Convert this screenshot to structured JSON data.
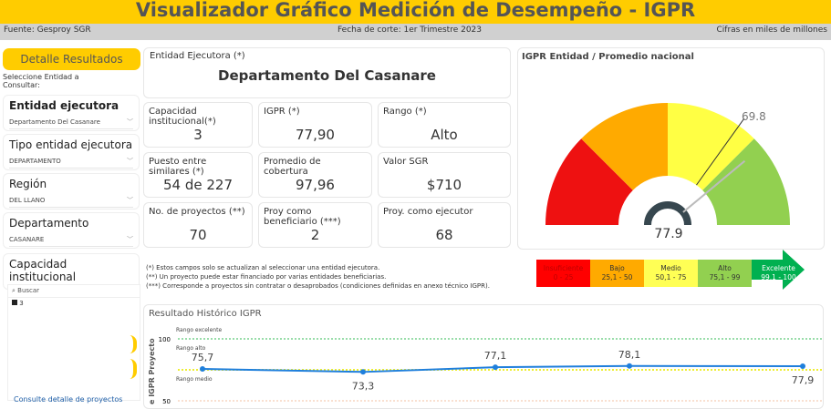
{
  "header": {
    "title": "Visualizador Gráfico Medición de Desempeño - IGPR",
    "source": "Fuente: Gesproy SGR",
    "cutoff": "Fecha de corte: 1er Trimestre 2023",
    "units": "Cifras en miles de millones"
  },
  "sidebar": {
    "details_button": "Detalle Resultados",
    "prompt": "Seleccione Entidad a Consultar:",
    "filters": [
      {
        "label": "Entidad ejecutora",
        "value": "Departamento Del Casanare"
      },
      {
        "label": "Tipo entidad ejecutora",
        "value": "DEPARTAMENTO"
      },
      {
        "label": "Región",
        "value": "DEL LLANO"
      },
      {
        "label": "Departamento",
        "value": "CASANARE"
      },
      {
        "label": "Capacidad institucional",
        "value": "3"
      }
    ],
    "dropdown": {
      "search_placeholder": "Buscar",
      "options": [
        "3"
      ]
    },
    "link": "Consulte detalle de proyectos"
  },
  "entity": {
    "label": "Entidad Ejecutora (*)",
    "name": "Departamento Del Casanare"
  },
  "kpis": [
    {
      "label": "Capacidad institucional(*)",
      "value": "3"
    },
    {
      "label": "IGPR (*)",
      "value": "77,90"
    },
    {
      "label": "Rango (*)",
      "value": "Alto"
    },
    {
      "label": "Puesto entre similares (*)",
      "value": "54 de 227"
    },
    {
      "label": "Promedio de cobertura",
      "value": "97,96"
    },
    {
      "label": "Valor SGR",
      "value": "$710"
    },
    {
      "label": "No. de proyectos (**)",
      "value": "70"
    },
    {
      "label": "Proy como beneficiario (***)",
      "value": "2"
    },
    {
      "label": "Proy. como ejecutor",
      "value": "68"
    }
  ],
  "notes": [
    "(*) Estos campos solo se actualizan al seleccionar una entidad ejecutora.",
    "(**) Un proyecto puede estar financiado por varias entidades beneficiarias.",
    "(***) Corresponde a proyectos sin contratar o desaprobados (condiciones definidas en anexo técnico IGPR)."
  ],
  "gauge": {
    "title": "IGPR Entidad / Promedio nacional",
    "value": 77.9,
    "value_label": "77.9",
    "national": 69.8,
    "national_label": "69.8",
    "min": 0,
    "max": 100,
    "bands": [
      {
        "from": 0,
        "to": 25,
        "color": "#ee1111"
      },
      {
        "from": 25,
        "to": 50,
        "color": "#ffaa00"
      },
      {
        "from": 50,
        "to": 75,
        "color": "#ffff44"
      },
      {
        "from": 75,
        "to": 100,
        "color": "#92d050"
      }
    ]
  },
  "scale": [
    {
      "name": "Insuficiente",
      "range": "0 - 25",
      "color": "#ff0000",
      "text": "#c00000"
    },
    {
      "name": "Bajo",
      "range": "25,1 - 50",
      "color": "#ffaa00",
      "text": "#333"
    },
    {
      "name": "Medio",
      "range": "50,1 - 75",
      "color": "#ffff55",
      "text": "#333"
    },
    {
      "name": "Alto",
      "range": "75,1 - 99",
      "color": "#92d050",
      "text": "#333"
    },
    {
      "name": "Excelente",
      "range": "99,1 - 100",
      "color": "#00b050",
      "text": "#fff"
    }
  ],
  "chart_data": {
    "type": "line",
    "title": "Resultado Histórico IGPR",
    "ylabel": "e IGPR Proyecto",
    "yticks": [
      "100",
      "50"
    ],
    "values": [
      75.7,
      73.3,
      77.1,
      78.1,
      77.9
    ],
    "labels": [
      "75,7",
      "73,3",
      "77,1",
      "78,1",
      "77,9"
    ],
    "bands": [
      {
        "label": "Rango excelente",
        "y": 100,
        "color": "#33bb55"
      },
      {
        "label": "Rango alto",
        "y": null
      },
      {
        "label": "Rango medio",
        "y": 75,
        "color": "#eeee33"
      }
    ],
    "line_color": "#1f7fdc"
  }
}
